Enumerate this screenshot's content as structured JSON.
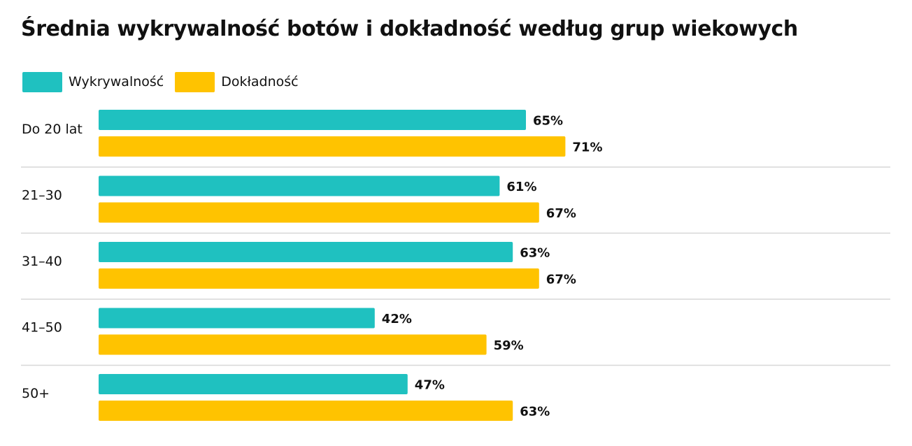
{
  "chart_data": {
    "type": "bar",
    "orientation": "horizontal",
    "title": "Średnia wykrywalność botów i dokładność według grup wiekowych",
    "categories": [
      "Do 20 lat",
      "21–30",
      "31–40",
      "41–50",
      "50+"
    ],
    "series": [
      {
        "name": "Wykrywalność",
        "color": "#1fc1c0",
        "values": [
          65,
          61,
          63,
          42,
          47
        ]
      },
      {
        "name": "Dokładność",
        "color": "#ffc300",
        "values": [
          71,
          67,
          67,
          59,
          63
        ]
      }
    ],
    "value_suffix": "%",
    "legend_position": "top-left",
    "grid": false,
    "xlim": [
      0,
      100
    ]
  }
}
